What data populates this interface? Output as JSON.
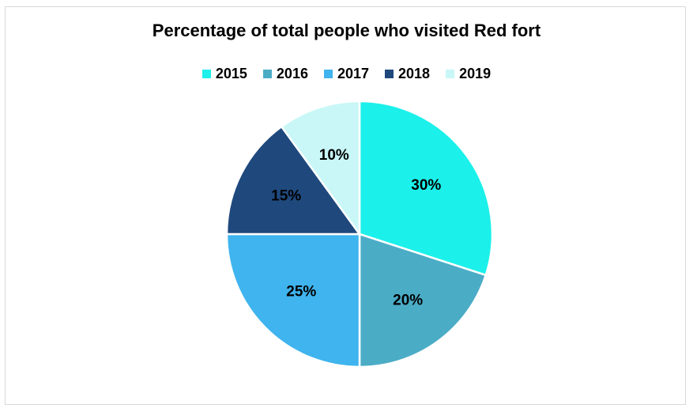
{
  "chart_data": {
    "type": "pie",
    "title": "Percentage of total people who visited Red fort",
    "categories": [
      "2015",
      "2016",
      "2017",
      "2018",
      "2019"
    ],
    "values": [
      30,
      20,
      25,
      15,
      10
    ],
    "data_labels": [
      "30%",
      "20%",
      "25%",
      "15%",
      "10%"
    ],
    "colors": [
      "#1cf0ea",
      "#4bacc6",
      "#3fb4ee",
      "#1f497d",
      "#c9f7f7"
    ],
    "legend_position": "top",
    "start_angle": "12 o'clock",
    "direction": "clockwise"
  }
}
